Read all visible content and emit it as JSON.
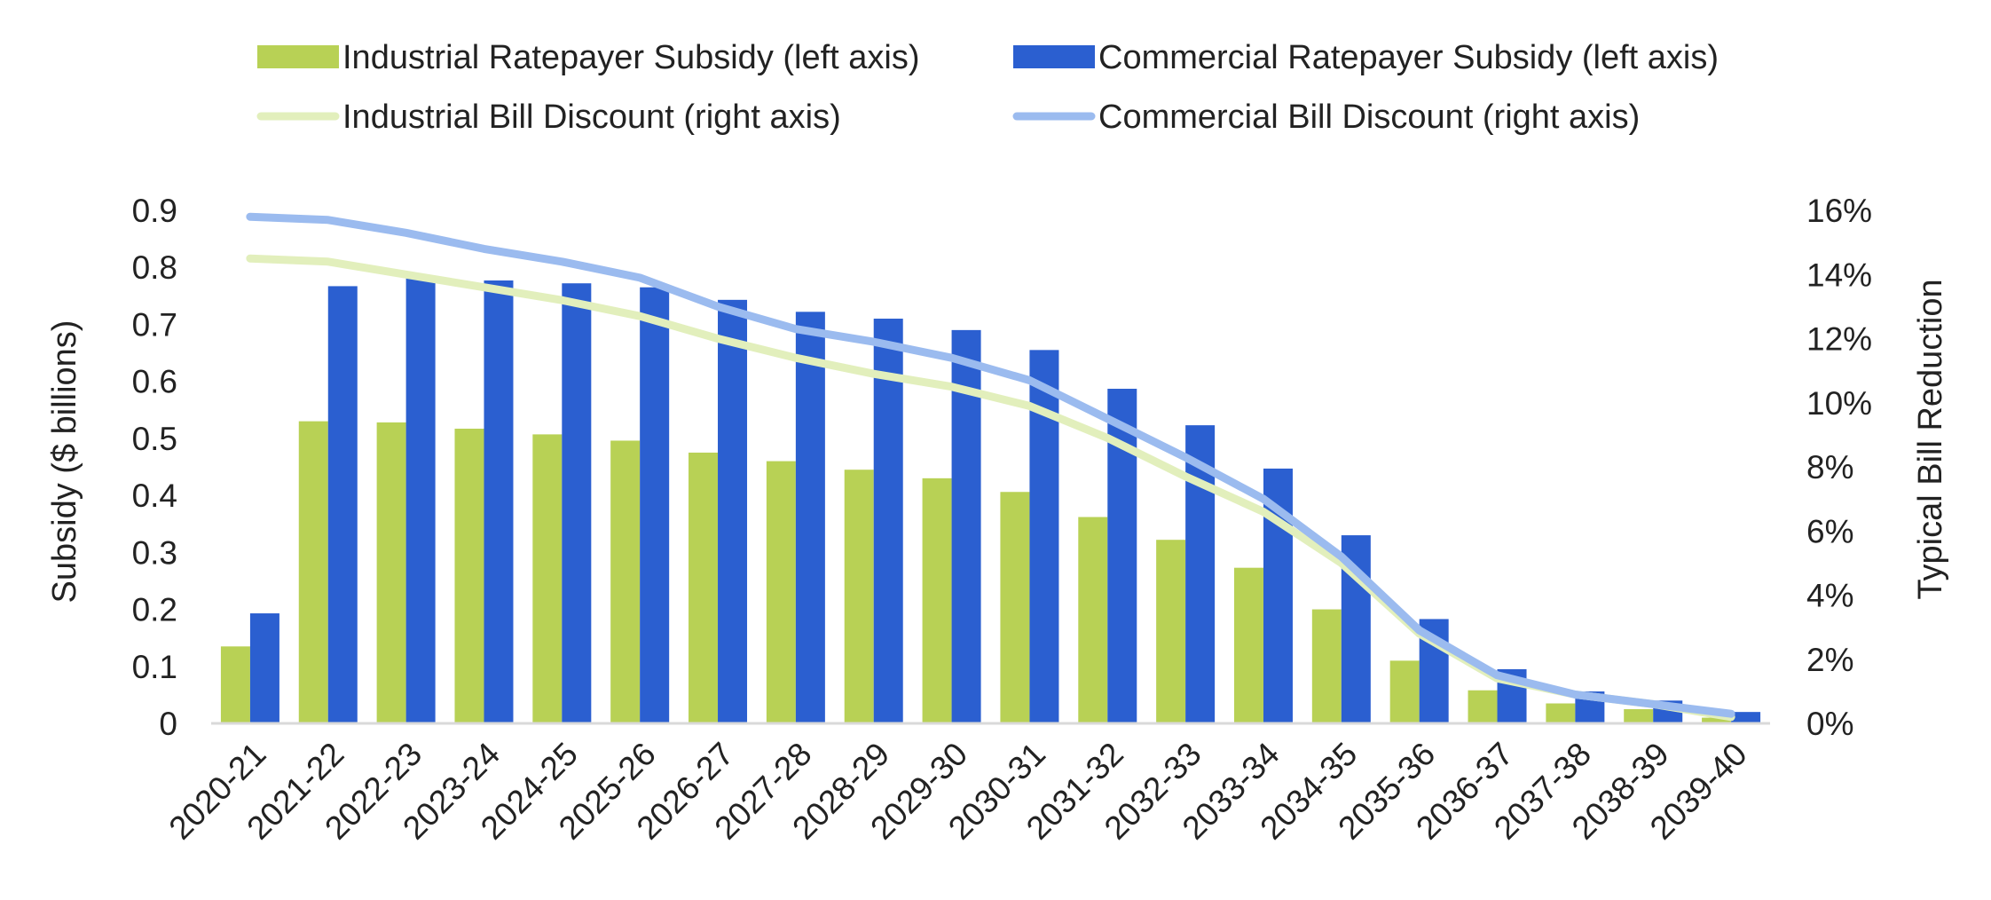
{
  "chart_data": {
    "type": "bar",
    "categories": [
      "2020-21",
      "2021-22",
      "2022-23",
      "2023-24",
      "2024-25",
      "2025-26",
      "2026-27",
      "2027-28",
      "2028-29",
      "2029-30",
      "2030-31",
      "2031-32",
      "2032-33",
      "2033-34",
      "2034-35",
      "2035-36",
      "2036-37",
      "2037-38",
      "2038-39",
      "2039-40"
    ],
    "series": [
      {
        "name": "Industrial Ratepayer Subsidy (left axis)",
        "kind": "bar",
        "axis": "left",
        "color": "#b8d155",
        "values": [
          0.135,
          0.53,
          0.528,
          0.517,
          0.507,
          0.496,
          0.475,
          0.46,
          0.445,
          0.43,
          0.406,
          0.362,
          0.322,
          0.273,
          0.2,
          0.11,
          0.058,
          0.035,
          0.025,
          0.01
        ]
      },
      {
        "name": "Commercial Ratepayer Subsidy (left axis)",
        "kind": "bar",
        "axis": "left",
        "color": "#2b5fd0",
        "values": [
          0.193,
          0.767,
          0.782,
          0.777,
          0.772,
          0.765,
          0.743,
          0.722,
          0.71,
          0.69,
          0.655,
          0.587,
          0.523,
          0.447,
          0.33,
          0.183,
          0.095,
          0.056,
          0.04,
          0.02
        ]
      },
      {
        "name": "Industrial Bill Discount (right axis)",
        "kind": "line",
        "axis": "right",
        "color": "#e2efbc",
        "values": [
          14.5,
          14.4,
          14.0,
          13.6,
          13.2,
          12.7,
          12.0,
          11.4,
          10.9,
          10.5,
          9.9,
          8.9,
          7.7,
          6.6,
          5.0,
          2.8,
          1.4,
          0.9,
          0.6,
          0.2
        ]
      },
      {
        "name": "Commercial Bill Discount (right axis)",
        "kind": "line",
        "axis": "right",
        "color": "#9bbbef",
        "values": [
          15.8,
          15.7,
          15.3,
          14.8,
          14.4,
          13.9,
          13.0,
          12.3,
          11.9,
          11.4,
          10.7,
          9.5,
          8.3,
          7.0,
          5.2,
          2.9,
          1.5,
          0.9,
          0.6,
          0.3
        ]
      }
    ],
    "left_axis": {
      "label": "Subsidy ($ billions)",
      "ylim": [
        0,
        0.9
      ],
      "ticks": [
        "0",
        "0.1",
        "0.2",
        "0.3",
        "0.4",
        "0.5",
        "0.6",
        "0.7",
        "0.8",
        "0.9"
      ]
    },
    "right_axis": {
      "label": "Typical Bill Reduction",
      "ylim": [
        0,
        16
      ],
      "ticks": [
        "0%",
        "2%",
        "4%",
        "6%",
        "8%",
        "10%",
        "12%",
        "14%",
        "16%"
      ]
    },
    "legend_position": "top",
    "grid": false
  }
}
